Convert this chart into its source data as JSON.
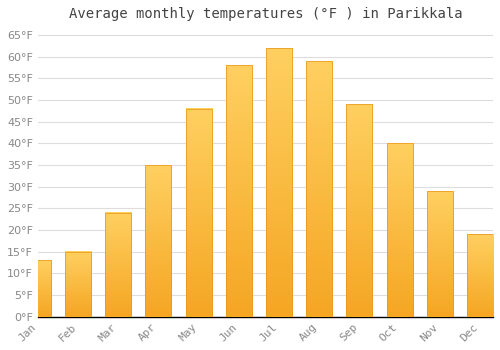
{
  "title": "Average monthly temperatures (°F ) in Parikkala",
  "months": [
    "Jan",
    "Feb",
    "Mar",
    "Apr",
    "May",
    "Jun",
    "Jul",
    "Aug",
    "Sep",
    "Oct",
    "Nov",
    "Dec"
  ],
  "values": [
    13,
    15,
    24,
    35,
    48,
    58,
    62,
    59,
    49,
    40,
    29,
    19
  ],
  "bar_color_bottom": "#F5A623",
  "bar_color_top": "#FFD060",
  "bar_edge_color": "#E8951A",
  "background_color": "#FFFFFF",
  "grid_color": "#DDDDDD",
  "ylim": [
    0,
    67
  ],
  "yticks": [
    0,
    5,
    10,
    15,
    20,
    25,
    30,
    35,
    40,
    45,
    50,
    55,
    60,
    65
  ],
  "title_fontsize": 10,
  "tick_fontsize": 8,
  "title_color": "#444444",
  "tick_color": "#888888",
  "figsize": [
    5.0,
    3.5
  ],
  "dpi": 100
}
